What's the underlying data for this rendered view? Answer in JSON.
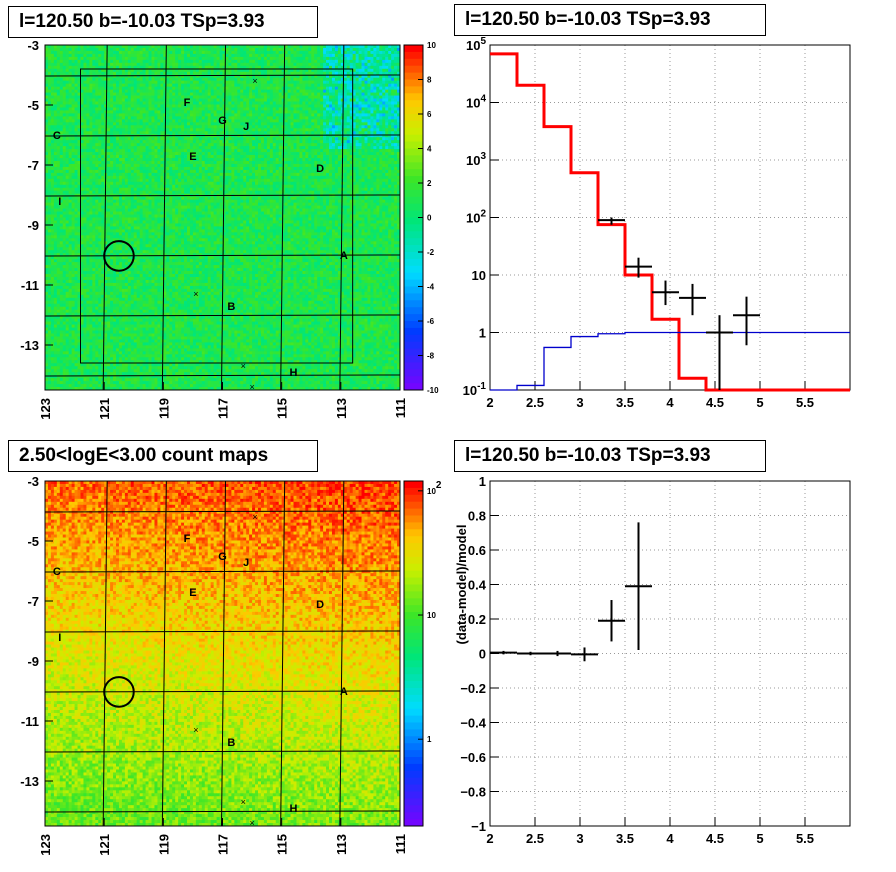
{
  "panels": {
    "tl_title": "l=120.50 b=-10.03 TSp=3.93",
    "tr_title": "l=120.50 b=-10.03 TSp=3.93",
    "bl_title": "2.50<logE<3.00 count maps",
    "br_title": "l=120.50 b=-10.03 TSp=3.93"
  },
  "chart_data": [
    {
      "id": "residual-map",
      "type": "heatmap",
      "title": "l=120.50 b=-10.03 TSp=3.93",
      "x_ticks": [
        "123",
        "121",
        "119",
        "117",
        "115",
        "113",
        "111"
      ],
      "y_ticks": [
        "-3",
        "-5",
        "-7",
        "-9",
        "-11",
        "-13"
      ],
      "xlim": [
        123,
        111
      ],
      "ylim": [
        -14.5,
        -3
      ],
      "colorbar": {
        "ticks": [
          "10",
          "8",
          "6",
          "4",
          "2",
          "0",
          "-2",
          "-4",
          "-6",
          "-8",
          "-10"
        ],
        "range": [
          -10,
          10
        ]
      },
      "sources": [
        {
          "label": "A",
          "l": 112.9,
          "b": -10.0
        },
        {
          "label": "B",
          "l": 116.7,
          "b": -11.7
        },
        {
          "label": "C",
          "l": 122.6,
          "b": -6.0
        },
        {
          "label": "D",
          "l": 113.7,
          "b": -7.1
        },
        {
          "label": "E",
          "l": 118.0,
          "b": -6.7
        },
        {
          "label": "F",
          "l": 118.2,
          "b": -4.9
        },
        {
          "label": "G",
          "l": 117.0,
          "b": -5.5
        },
        {
          "label": "H",
          "l": 114.6,
          "b": -13.9
        },
        {
          "label": "I",
          "l": 122.5,
          "b": -8.2
        },
        {
          "label": "J",
          "l": 116.2,
          "b": -5.7
        }
      ],
      "crosses": [
        {
          "l": 115.9,
          "b": -4.2
        },
        {
          "l": 117.9,
          "b": -11.3
        },
        {
          "l": 116.3,
          "b": -13.7
        },
        {
          "l": 116.0,
          "b": -14.4
        }
      ],
      "circle": {
        "l": 120.5,
        "b": -10.03,
        "r": 0.5
      }
    },
    {
      "id": "spectrum",
      "type": "line",
      "title": "l=120.50 b=-10.03 TSp=3.93",
      "yscale": "log",
      "xlim": [
        2,
        6
      ],
      "ylim": [
        0.1,
        100000
      ],
      "x_ticks": [
        "2",
        "2.5",
        "3",
        "3.5",
        "4",
        "4.5",
        "5",
        "5.5"
      ],
      "y_ticks": [
        "10^-1",
        "1",
        "10",
        "10^2",
        "10^3",
        "10^4",
        "10^5"
      ],
      "series": [
        {
          "name": "",
          "color": "#ff0000",
          "edges": [
            2,
            2.3,
            2.6,
            2.9,
            3.2,
            3.5,
            3.8,
            4.1,
            4.4,
            4.7,
            5.0,
            5.3,
            5.6,
            6.0
          ],
          "values": [
            70000,
            20000,
            3800,
            600,
            75,
            10,
            1.7,
            0.16,
            0.1,
            0.1,
            0.1,
            0.1,
            0.1
          ]
        },
        {
          "name": "",
          "color": "#0000cc",
          "edges": [
            2,
            2.3,
            2.6,
            2.9,
            3.2,
            3.5,
            3.8,
            4.1,
            4.4,
            4.7,
            5.0,
            5.3,
            5.6,
            6.0
          ],
          "values": [
            0.1,
            0.12,
            0.55,
            0.85,
            0.95,
            1.0,
            1.0,
            1.0,
            1.0,
            1.0,
            1.0,
            1.0,
            1.0
          ]
        },
        {
          "name": "",
          "color": "#000000",
          "points": [
            {
              "x": 3.35,
              "y": 90,
              "xerr": 0.15,
              "ylo": 75,
              "yhi": 100
            },
            {
              "x": 3.65,
              "y": 14,
              "xerr": 0.15,
              "ylo": 9,
              "yhi": 20
            },
            {
              "x": 3.95,
              "y": 5,
              "xerr": 0.15,
              "ylo": 3,
              "yhi": 8
            },
            {
              "x": 4.25,
              "y": 4,
              "xerr": 0.15,
              "ylo": 2,
              "yhi": 7
            },
            {
              "x": 4.55,
              "y": 1,
              "xerr": 0.15,
              "ylo": 0.1,
              "yhi": 2
            },
            {
              "x": 4.85,
              "y": 2,
              "xerr": 0.15,
              "ylo": 0.6,
              "yhi": 4.2
            }
          ]
        }
      ]
    },
    {
      "id": "count-map",
      "type": "heatmap",
      "title": "2.50<logE<3.00 count maps",
      "x_ticks": [
        "123",
        "121",
        "119",
        "117",
        "115",
        "113",
        "111"
      ],
      "y_ticks": [
        "-3",
        "-5",
        "-7",
        "-9",
        "-11",
        "-13"
      ],
      "xlim": [
        123,
        111
      ],
      "ylim": [
        -14.5,
        -3
      ],
      "colorbar": {
        "ticks": [
          "10^2",
          "10",
          "1"
        ],
        "scale": "log",
        "range": [
          0.2,
          120
        ]
      }
    },
    {
      "id": "residual-ratio",
      "type": "scatter",
      "title": "l=120.50 b=-10.03 TSp=3.93",
      "ylabel": "(data-model)/model",
      "xlim": [
        2,
        6
      ],
      "ylim": [
        -1,
        1
      ],
      "x_ticks": [
        "2",
        "2.5",
        "3",
        "3.5",
        "4",
        "4.5",
        "5",
        "5.5"
      ],
      "y_ticks": [
        "1",
        "0.8",
        "0.6",
        "0.4",
        "0.2",
        "0",
        "-0.2",
        "-0.4",
        "-0.6",
        "-0.8",
        "-1"
      ],
      "points": [
        {
          "x": 2.15,
          "y": 0.005,
          "xerr": 0.15,
          "yerr": 0.01
        },
        {
          "x": 2.45,
          "y": 0.0,
          "xerr": 0.15,
          "yerr": 0.01
        },
        {
          "x": 2.75,
          "y": 0.0,
          "xerr": 0.15,
          "yerr": 0.015
        },
        {
          "x": 3.05,
          "y": -0.005,
          "xerr": 0.15,
          "yerr": 0.04
        },
        {
          "x": 3.35,
          "y": 0.19,
          "xerr": 0.15,
          "yerr": 0.12
        },
        {
          "x": 3.65,
          "y": 0.39,
          "xerr": 0.15,
          "yerr": 0.37
        }
      ]
    }
  ]
}
